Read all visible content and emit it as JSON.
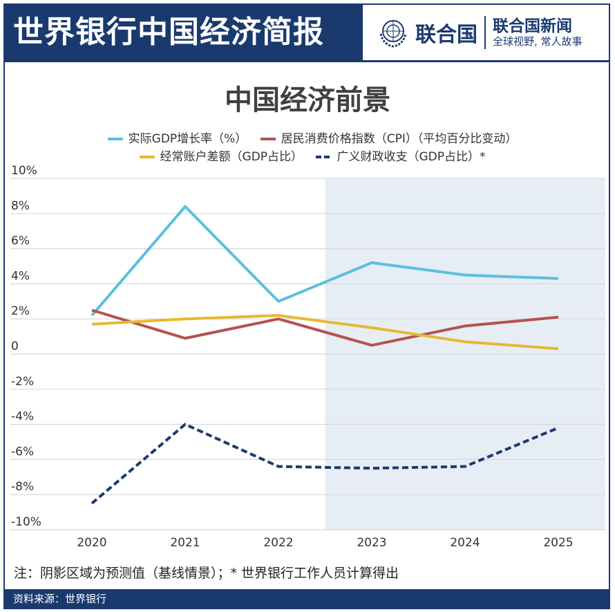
{
  "header": {
    "title": "世界银行中国经济简报",
    "un_name": "联合国",
    "news_name": "联合国新闻",
    "news_slogan": "全球视野, 常人故事"
  },
  "note": "注：阴影区域为预测值（基线情景）；* 世界银行工作人员计算得出",
  "source": "资料来源：世界银行",
  "chart_data": {
    "type": "line",
    "title": "中国经济前景",
    "categories": [
      "2020",
      "2021",
      "2022",
      "2023",
      "2024",
      "2025"
    ],
    "ylim": [
      -10,
      10
    ],
    "yticks": [
      10,
      8,
      6,
      4,
      2,
      0,
      -2,
      -4,
      -6,
      -8,
      -10
    ],
    "ytick_labels": [
      "10%",
      "8%",
      "6%",
      "4%",
      "2%",
      "0",
      "-2%",
      "-4%",
      "-6%",
      "-8%",
      "-10%"
    ],
    "grid": true,
    "legend": "top",
    "shaded_forecast_from": "2023",
    "shade_color": "#e6edf5",
    "series": [
      {
        "name": "实际GDP增长率（%）",
        "color": "#5bc0de",
        "dash": false,
        "values": [
          2.2,
          8.4,
          3.0,
          5.2,
          4.5,
          4.3
        ]
      },
      {
        "name": "居民消费价格指数（CPI）（平均百分比变动）",
        "color": "#b5524f",
        "dash": false,
        "values": [
          2.5,
          0.9,
          2.0,
          0.5,
          1.6,
          2.1
        ]
      },
      {
        "name": "经常账户差额（GDP占比）",
        "color": "#e6b832",
        "dash": false,
        "values": [
          1.7,
          2.0,
          2.2,
          1.5,
          0.7,
          0.3
        ]
      },
      {
        "name": "广义财政收支（GDP占比）*",
        "color": "#1a3a6e",
        "dash": true,
        "values": [
          -8.5,
          -4.0,
          -6.4,
          -6.5,
          -6.4,
          -4.2
        ]
      }
    ]
  }
}
